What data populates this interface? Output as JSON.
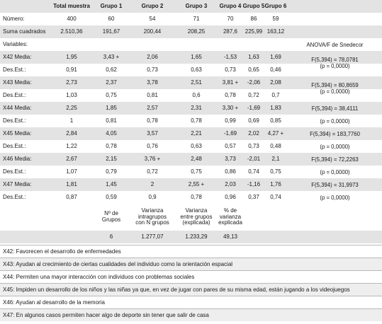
{
  "header": {
    "labels": [
      "",
      "Total muestra",
      "Grupo 1",
      "Grupo 2",
      "Grupo 3",
      "Grupo 4",
      "Grupo 5",
      "Grupo 6"
    ]
  },
  "numero": {
    "label": "Número:",
    "values": [
      "400",
      "60",
      "54",
      "71",
      "70",
      "86",
      "59"
    ]
  },
  "suma": {
    "label": "Suma cuadrados",
    "values": [
      "2.510,36",
      "191,67",
      "200,44",
      "208,25",
      "287,6",
      "225,99",
      "163,12"
    ]
  },
  "variables": {
    "label": "Variables:",
    "anova_header": "ANOVA/F de Snedecor"
  },
  "rows": [
    {
      "label": "X42 Media:",
      "values": [
        "1,95",
        "3,43 +",
        "2,06",
        "1,65",
        "-1,53",
        "1,63",
        "1,69"
      ]
    },
    {
      "label": "Des.Est.:",
      "values": [
        "0,91",
        "0,62",
        "0,73",
        "0,63",
        "0,73",
        "0,65",
        "0,46"
      ]
    },
    {
      "label": "X43 Media:",
      "values": [
        "2,73",
        "2,37",
        "3,78",
        "2,51",
        "3,81 +",
        "-2,06",
        "2,08"
      ]
    },
    {
      "label": "Des.Est.:",
      "values": [
        "1,03",
        "0,75",
        "0,81",
        "0,6",
        "0,78",
        "0,72",
        "0,7"
      ]
    },
    {
      "label": "X44 Media:",
      "values": [
        "2,25",
        "1,85",
        "2,57",
        "2,31",
        "3,30 +",
        "-1,69",
        "1,83"
      ]
    },
    {
      "label": "Des.Est.:",
      "values": [
        "1",
        "0,81",
        "0,78",
        "0,78",
        "0,99",
        "0,69",
        "0,85"
      ]
    },
    {
      "label": "X45 Media:",
      "values": [
        "2,84",
        "4,05",
        "3,57",
        "2,21",
        "-1,69",
        "2,02",
        "4,27 +"
      ]
    },
    {
      "label": "Des.Est.:",
      "values": [
        "1,22",
        "0,78",
        "0,76",
        "0,63",
        "0,57",
        "0,73",
        "0,48"
      ]
    },
    {
      "label": "X46 Media:",
      "values": [
        "2,67",
        "2,15",
        "3,76 +",
        "2,48",
        "3,73",
        "-2,01",
        "2,1"
      ]
    },
    {
      "label": "Des.Est.:",
      "values": [
        "1,07",
        "0,79",
        "0,72",
        "0,75",
        "0,86",
        "0,74",
        "0,75"
      ]
    },
    {
      "label": "X47 Media:",
      "values": [
        "1,81",
        "1,45",
        "2",
        "2,55 +",
        "2,03",
        "-1,16",
        "1,76"
      ]
    },
    {
      "label": "Des.Est.:",
      "values": [
        "0,87",
        "0,59",
        "0,9",
        "0,78",
        "0,96",
        "0,37",
        "0,74"
      ]
    }
  ],
  "anova": {
    "x42_x43": {
      "f": "F(5,394) = 78,0781",
      "p": "(p = 0,0000)"
    },
    "x43": {
      "f": "F(5,394) = 80,8659",
      "p": "(p = 0,0000)"
    },
    "x44": {
      "f": "F(5,394) = 38,4111",
      "p": "(p = 0,0000)"
    },
    "x45": {
      "f": "F(5,394) = 183,7760",
      "p": "(p = 0,0000)"
    },
    "x46": {
      "f": "F(5,394) = 72,2263",
      "p": "(p = 0,0000)"
    },
    "x47": {
      "f": "F(5,394) = 31,9973",
      "p": "(p = 0,0000)"
    }
  },
  "summary": {
    "headers": [
      [
        "Nº de",
        "Grupos"
      ],
      [
        "Varianza",
        "intragrupos",
        "con N grupos"
      ],
      [
        "Varianza",
        "entre grupos",
        "(explicada)"
      ],
      [
        "% de",
        "varianza",
        "explicada"
      ]
    ],
    "values": [
      "6",
      "1.277,07",
      "1.233,29",
      "49,13"
    ]
  },
  "legend": [
    "X42: Favorecen el desarrollo de enfermedades",
    "X43: Ayudan al crecimiento de ciertas cualidades del individuo como la orientación espacial",
    "X44: Permiten una mayor interacción con individuos con problemas sociales",
    "X45: Impiden un desarrollo de los niños y las niñas ya que, en vez de jugar con pares de su misma edad, están jugando a los videojuegos",
    "X46: Ayudan al desarrollo de la memoria",
    "X47: En algunos casos permiten hacer algo de deporte sin tener que salir de casa"
  ]
}
